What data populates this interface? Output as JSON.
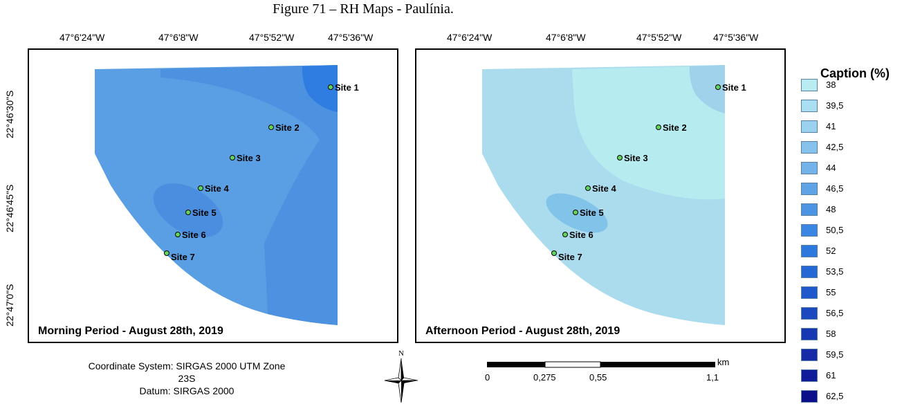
{
  "figure_title": "Figure 71 – RH Maps - Paulínia.",
  "lon_ticks": [
    "47°6'24\"W",
    "47°6'8\"W",
    "47°5'52\"W",
    "47°5'36\"W"
  ],
  "lat_ticks": [
    "22°46'30\"S",
    "22°46'45\"S",
    "22°47'0\"S"
  ],
  "sites": [
    "Site 1",
    "Site 2",
    "Site 3",
    "Site 4",
    "Site 5",
    "Site 6",
    "Site 7"
  ],
  "panels": [
    {
      "label": "Morning Period - August 28th, 2019",
      "base_color": "#5a9fe3",
      "zone_color": "#4b8ee0",
      "hot_color": "#2f7de0",
      "blob_color": "#4b8ee0"
    },
    {
      "label": "Afternoon Period - August 28th, 2019",
      "base_color": "#aadcee",
      "zone_color": "#b6ebf0",
      "hot_color": "#a0d2ec",
      "blob_color": "#82c3ea"
    }
  ],
  "legend": {
    "title": "Caption (%)",
    "items": [
      {
        "label": "38",
        "color": "#b8ecf0"
      },
      {
        "label": "39,5",
        "color": "#a9dff0"
      },
      {
        "label": "41",
        "color": "#9ad1ef"
      },
      {
        "label": "42,5",
        "color": "#86c2ec"
      },
      {
        "label": "44",
        "color": "#74b3ea"
      },
      {
        "label": "46,5",
        "color": "#5ea3e6"
      },
      {
        "label": "48",
        "color": "#4b93e3"
      },
      {
        "label": "50,5",
        "color": "#3a86e2"
      },
      {
        "label": "52",
        "color": "#2c78de"
      },
      {
        "label": "53,5",
        "color": "#2468d6"
      },
      {
        "label": "55",
        "color": "#1f58cc"
      },
      {
        "label": "56,5",
        "color": "#1b48bf"
      },
      {
        "label": "58",
        "color": "#1838b3"
      },
      {
        "label": "59,5",
        "color": "#142aa6"
      },
      {
        "label": "61",
        "color": "#101c99"
      },
      {
        "label": "62,5",
        "color": "#0b0f8a"
      }
    ]
  },
  "coordinate_system": "Coordinate System: SIRGAS 2000 UTM Zone 23S",
  "datum": "Datum: SIRGAS 2000",
  "north_label": "N",
  "scale": {
    "unit": "km",
    "labels": [
      "0",
      "0,275",
      "0,55",
      "1,1"
    ]
  }
}
